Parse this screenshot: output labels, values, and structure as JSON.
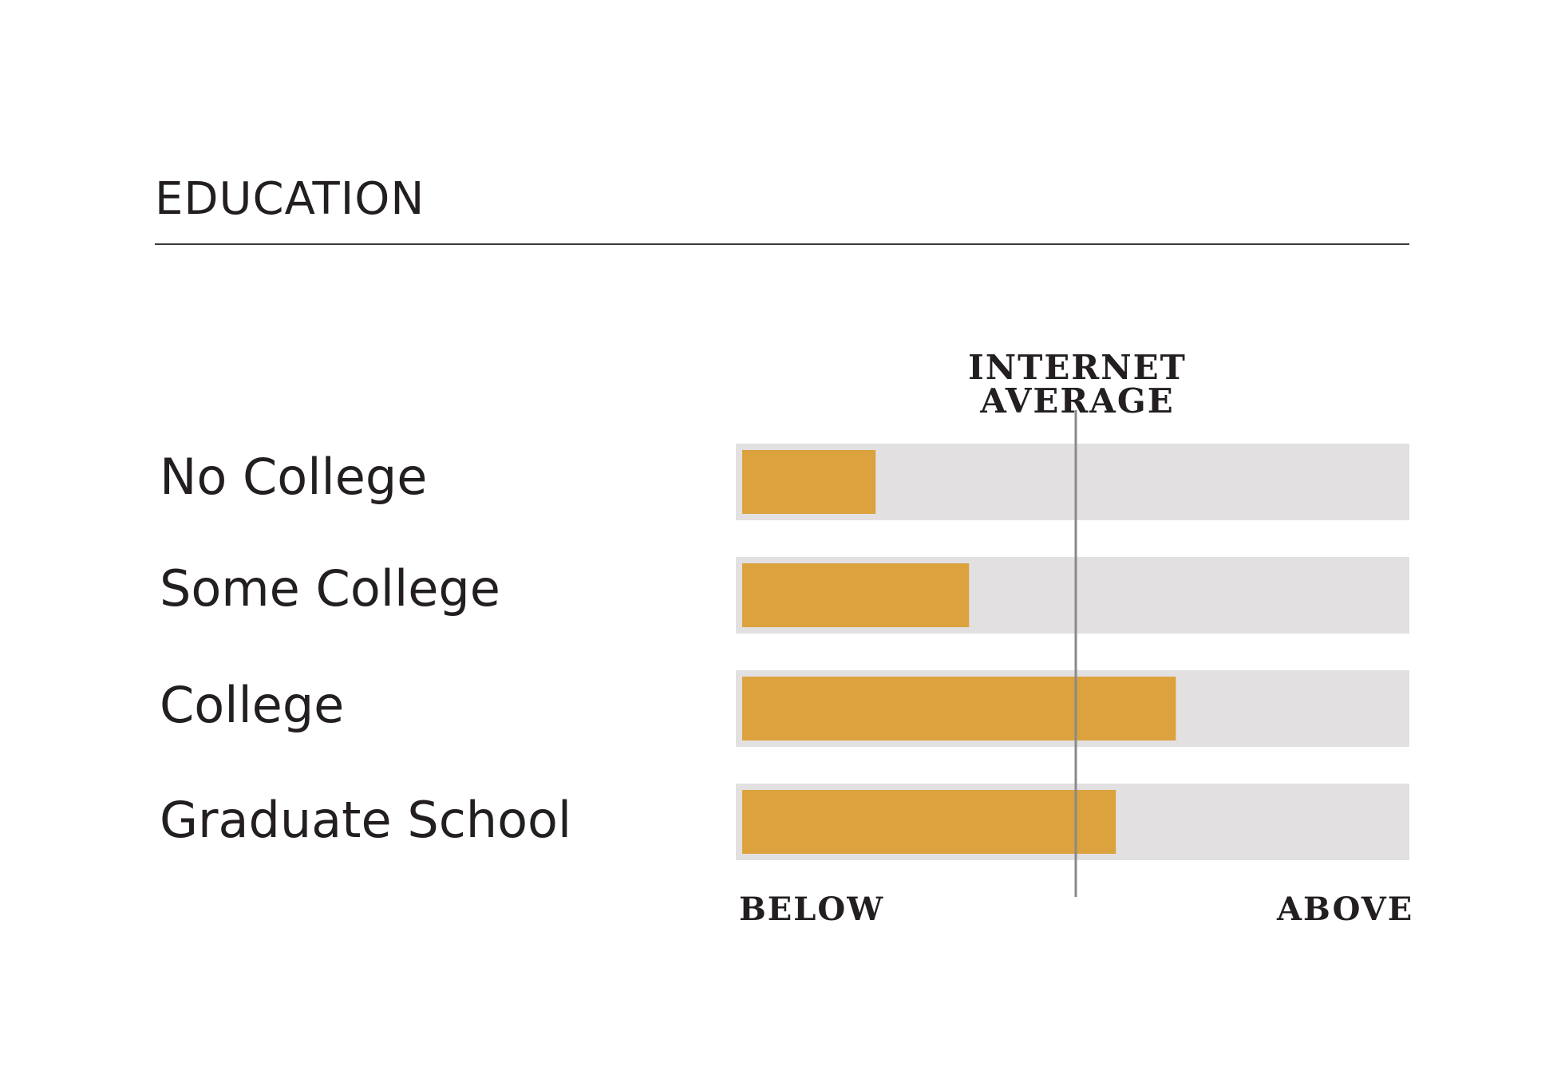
{
  "section": {
    "title": "EDUCATION"
  },
  "chart_data": {
    "type": "bar",
    "orientation": "horizontal",
    "title": "EDUCATION",
    "categories": [
      "No College",
      "Some College",
      "College",
      "Graduate School"
    ],
    "values": [
      0.2,
      0.34,
      0.65,
      0.56
    ],
    "xlim": [
      0,
      1
    ],
    "reference_line": {
      "label": "INTERNET AVERAGE",
      "value": 0.5
    },
    "axis_end_labels": {
      "low": "BELOW",
      "high": "ABOVE"
    },
    "bar_color": "#DBA23D",
    "track_color": "#E2E0E0",
    "grid": false,
    "legend": "none"
  }
}
